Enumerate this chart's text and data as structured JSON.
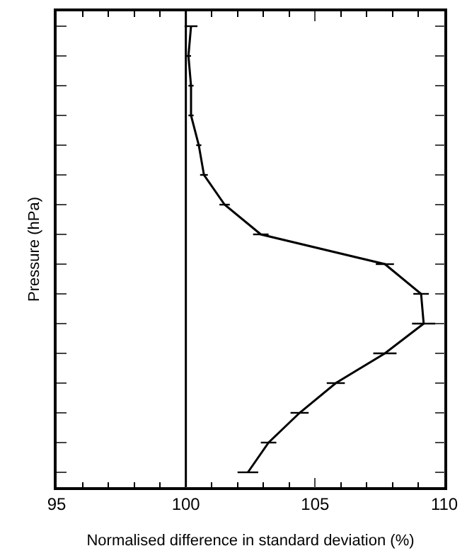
{
  "chart_data": {
    "type": "line",
    "orientation": "horizontal",
    "xlabel": "Normalised difference in standard deviation (%)",
    "ylabel": "Pressure (hPa)",
    "categories": [
      null,
      null,
      null,
      null,
      null,
      null,
      null,
      null,
      null,
      null,
      null,
      null,
      null,
      null,
      null,
      null
    ],
    "series": [
      {
        "color": "#000000",
        "values": [
          100.2,
          100.1,
          100.2,
          100.2,
          100.5,
          100.7,
          101.5,
          102.9,
          107.7,
          109.1,
          109.2,
          107.7,
          105.8,
          104.4,
          103.2,
          102.4
        ],
        "errors": [
          0.25,
          0.1,
          0.1,
          0.1,
          0.1,
          0.15,
          0.2,
          0.3,
          0.35,
          0.3,
          0.45,
          0.45,
          0.35,
          0.35,
          0.3,
          0.4
        ]
      }
    ],
    "xlim": [
      95,
      110
    ],
    "xticks": [
      95,
      100,
      105,
      110
    ],
    "ref_lines": [
      {
        "axis": "x",
        "value": 100,
        "color": "#000000"
      }
    ],
    "tick_labels": "x",
    "marker": "none",
    "line_style": "solid"
  }
}
